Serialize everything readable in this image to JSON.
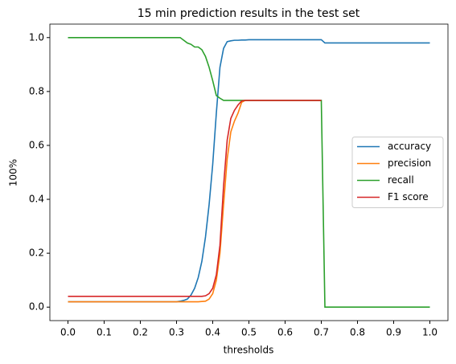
{
  "chart_data": {
    "type": "line",
    "title": "15 min prediction results in the test set",
    "x_label": "thresholds",
    "y_label": "100%",
    "x": [
      0,
      0.1,
      0.2,
      0.25,
      0.3,
      0.31,
      0.32,
      0.33,
      0.34,
      0.35,
      0.36,
      0.37,
      0.38,
      0.39,
      0.4,
      0.41,
      0.42,
      0.43,
      0.44,
      0.45,
      0.46,
      0.47,
      0.48,
      0.49,
      0.5,
      0.6,
      0.7,
      0.71,
      0.8,
      0.9,
      1.0
    ],
    "series": [
      {
        "name": "accuracy",
        "color": "#1f77b4",
        "values": [
          0.02,
          0.02,
          0.02,
          0.02,
          0.02,
          0.022,
          0.025,
          0.03,
          0.045,
          0.07,
          0.11,
          0.17,
          0.26,
          0.38,
          0.53,
          0.72,
          0.89,
          0.96,
          0.985,
          0.988,
          0.99,
          0.99,
          0.991,
          0.991,
          0.992,
          0.992,
          0.992,
          0.98,
          0.98,
          0.98,
          0.98
        ]
      },
      {
        "name": "precision",
        "color": "#ff7f0e",
        "values": [
          0.02,
          0.02,
          0.02,
          0.02,
          0.02,
          0.02,
          0.02,
          0.02,
          0.02,
          0.02,
          0.02,
          0.021,
          0.022,
          0.03,
          0.05,
          0.1,
          0.2,
          0.38,
          0.55,
          0.65,
          0.69,
          0.72,
          0.76,
          0.767,
          0.767,
          0.767,
          0.767,
          null,
          null,
          null,
          null
        ]
      },
      {
        "name": "recall",
        "color": "#2ca02c",
        "values": [
          1,
          1,
          1,
          1,
          1,
          1,
          0.99,
          0.98,
          0.975,
          0.965,
          0.965,
          0.955,
          0.93,
          0.89,
          0.84,
          0.785,
          0.775,
          0.767,
          0.767,
          0.767,
          0.767,
          0.767,
          0.767,
          0.767,
          0.767,
          0.767,
          0.767,
          0,
          0,
          0,
          0
        ]
      },
      {
        "name": "F1 score",
        "color": "#d62728",
        "values": [
          0.04,
          0.04,
          0.04,
          0.04,
          0.04,
          0.04,
          0.04,
          0.04,
          0.04,
          0.04,
          0.04,
          0.04,
          0.042,
          0.05,
          0.07,
          0.12,
          0.23,
          0.45,
          0.62,
          0.7,
          0.73,
          0.75,
          0.765,
          0.767,
          0.767,
          0.767,
          0.767,
          null,
          null,
          null,
          null
        ]
      }
    ],
    "xlim": [
      -0.05,
      1.05
    ],
    "ylim": [
      -0.05,
      1.05
    ],
    "xticks": [
      {
        "value": 0,
        "label": "0.0"
      },
      0.1,
      0.2,
      0.3,
      0.4,
      0.5,
      0.6,
      0.7,
      0.8,
      0.9,
      {
        "value": 1,
        "label": "1.0"
      }
    ],
    "yticks": [
      {
        "value": 0,
        "label": "0.0"
      },
      0.2,
      0.4,
      0.6,
      0.8,
      {
        "value": 1,
        "label": "1.0"
      }
    ],
    "legend": "center right"
  }
}
